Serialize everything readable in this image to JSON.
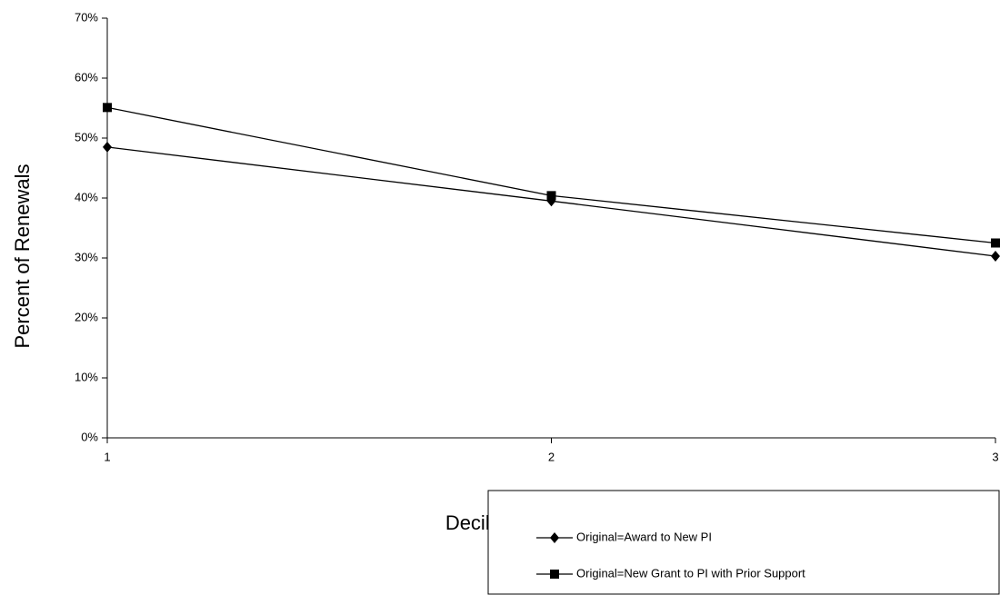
{
  "chart_data": {
    "type": "line",
    "x_label": "Decile of Original Award",
    "y_label": "Percent of Renewals",
    "x": [
      1,
      2,
      3
    ],
    "xlim": [
      1,
      3
    ],
    "xticks": [
      1,
      2,
      3
    ],
    "ylim": [
      0,
      70
    ],
    "yticks": [
      {
        "value": 0,
        "label": "0%"
      },
      {
        "value": 10,
        "label": "10%"
      },
      {
        "value": 20,
        "label": "20%"
      },
      {
        "value": 30,
        "label": "30%"
      },
      {
        "value": 40,
        "label": "40%"
      },
      {
        "value": 50,
        "label": "50%"
      },
      {
        "value": 60,
        "label": "60%"
      },
      {
        "value": 70,
        "label": "70%"
      }
    ],
    "grid": false,
    "series": [
      {
        "name": "Original=Award to New PI",
        "color": "#000000",
        "marker": "diamond",
        "values": [
          48.5,
          39.5,
          30.3
        ]
      },
      {
        "name": "Original=New Grant to PI with Prior Support",
        "color": "#000000",
        "marker": "square",
        "values": [
          55.1,
          40.4,
          32.5
        ]
      }
    ]
  }
}
